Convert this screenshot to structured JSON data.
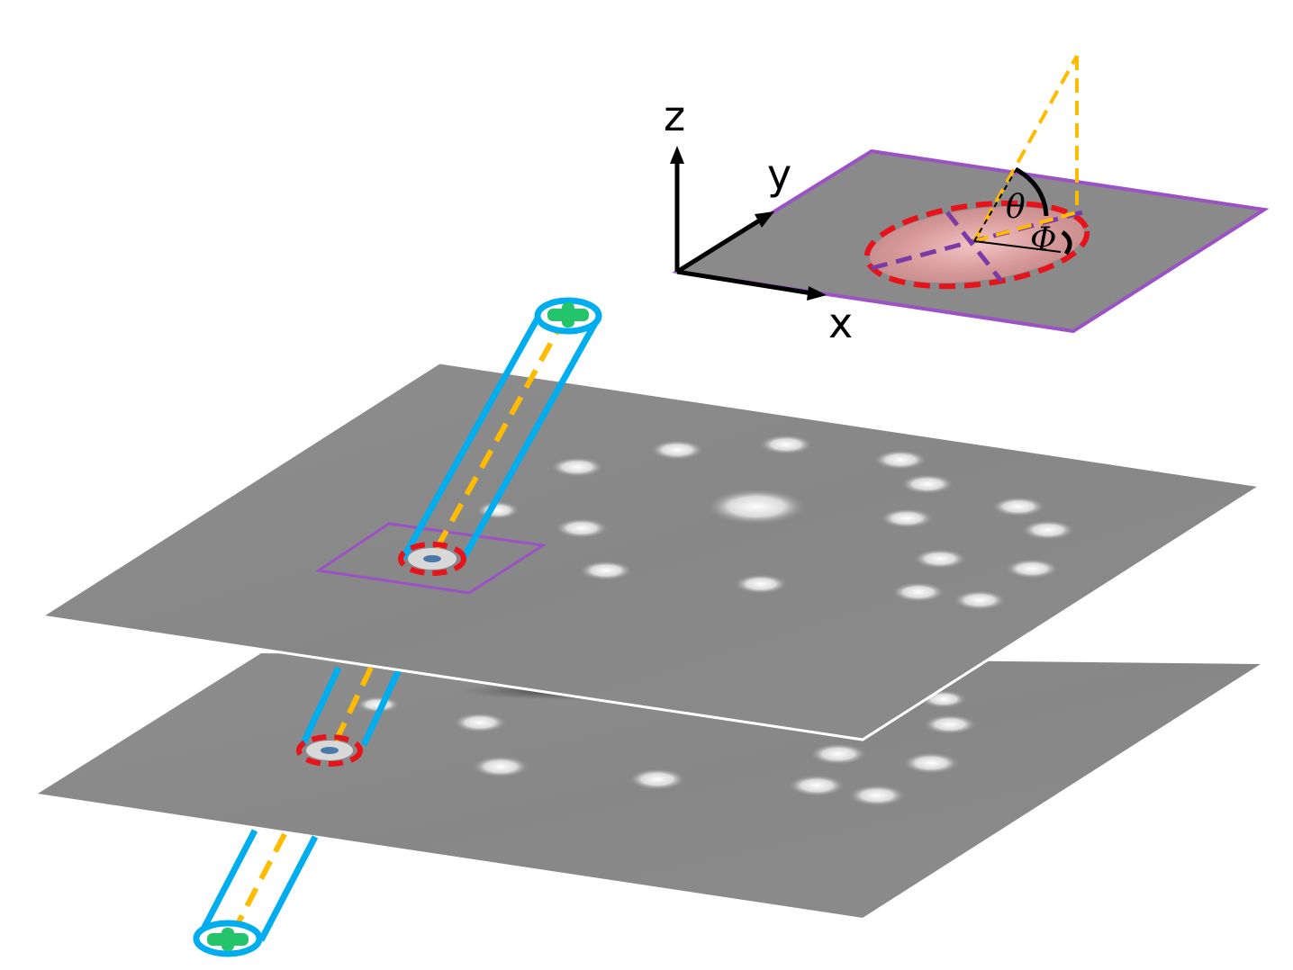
{
  "axes": {
    "x_label": "x",
    "y_label": "y",
    "z_label": "z"
  },
  "angles": {
    "polar": "θ",
    "azimuth": "Φ"
  },
  "colors": {
    "tube": "#00adef",
    "ellipse": "#e8121b",
    "trajectory": "#ffbb00",
    "roi_box": "#9b52c4",
    "cross": "#23c46a",
    "plane": "#8a8a8a"
  }
}
